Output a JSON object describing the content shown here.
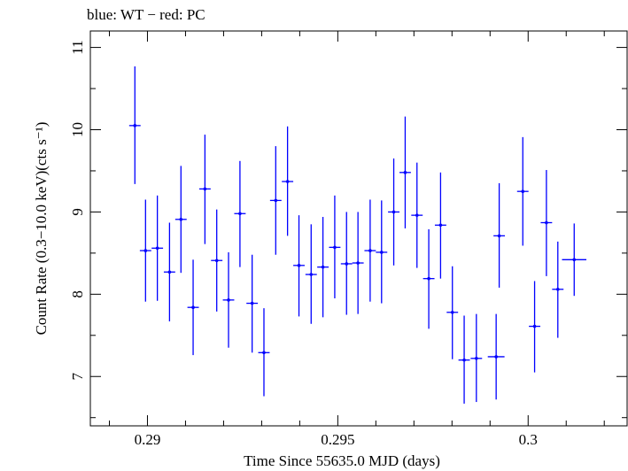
{
  "chart_data": {
    "type": "scatter",
    "title": "blue: WT − red: PC",
    "xlabel": "Time Since 55635.0 MJD (days)",
    "ylabel": "Count Rate (0.3−10.0 keV)(cts s⁻¹)",
    "xlim": [
      0.2885,
      0.3026
    ],
    "ylim": [
      6.4,
      11.2
    ],
    "x_ticks": [
      "0.29",
      "0.295",
      "0.3"
    ],
    "x_tick_values": [
      0.29,
      0.295,
      0.3
    ],
    "y_ticks": [
      "7",
      "8",
      "9",
      "10",
      "11"
    ],
    "y_tick_values": [
      7,
      8,
      9,
      10,
      11
    ],
    "grid": false,
    "error_bars": true,
    "series": [
      {
        "color": "#0000ff",
        "points": [
          {
            "x": 0.28967,
            "xerr": 0.00015,
            "y": 10.05,
            "ylo": 9.34,
            "yhi": 10.77
          },
          {
            "x": 0.28995,
            "xerr": 0.00015,
            "y": 8.53,
            "ylo": 7.91,
            "yhi": 9.15
          },
          {
            "x": 0.29026,
            "xerr": 0.00015,
            "y": 8.56,
            "ylo": 7.92,
            "yhi": 9.2
          },
          {
            "x": 0.29058,
            "xerr": 0.00015,
            "y": 8.27,
            "ylo": 7.67,
            "yhi": 8.87
          },
          {
            "x": 0.29088,
            "xerr": 0.00015,
            "y": 8.91,
            "ylo": 8.26,
            "yhi": 9.56
          },
          {
            "x": 0.2912,
            "xerr": 0.00015,
            "y": 7.84,
            "ylo": 7.26,
            "yhi": 8.42
          },
          {
            "x": 0.29151,
            "xerr": 0.00015,
            "y": 9.28,
            "ylo": 8.61,
            "yhi": 9.94
          },
          {
            "x": 0.29182,
            "xerr": 0.00015,
            "y": 8.41,
            "ylo": 7.79,
            "yhi": 9.03
          },
          {
            "x": 0.29213,
            "xerr": 0.00015,
            "y": 7.93,
            "ylo": 7.35,
            "yhi": 8.51
          },
          {
            "x": 0.29243,
            "xerr": 0.00015,
            "y": 8.98,
            "ylo": 8.33,
            "yhi": 9.62
          },
          {
            "x": 0.29275,
            "xerr": 0.00015,
            "y": 7.89,
            "ylo": 7.29,
            "yhi": 8.48
          },
          {
            "x": 0.29306,
            "xerr": 0.00015,
            "y": 7.29,
            "ylo": 6.76,
            "yhi": 7.83
          },
          {
            "x": 0.29337,
            "xerr": 0.00015,
            "y": 9.14,
            "ylo": 8.48,
            "yhi": 9.8
          },
          {
            "x": 0.29368,
            "xerr": 0.00015,
            "y": 9.37,
            "ylo": 8.71,
            "yhi": 10.04
          },
          {
            "x": 0.29398,
            "xerr": 0.00015,
            "y": 8.35,
            "ylo": 7.73,
            "yhi": 8.96
          },
          {
            "x": 0.2943,
            "xerr": 0.00015,
            "y": 8.24,
            "ylo": 7.64,
            "yhi": 8.85
          },
          {
            "x": 0.29461,
            "xerr": 0.00015,
            "y": 8.33,
            "ylo": 7.72,
            "yhi": 8.94
          },
          {
            "x": 0.29492,
            "xerr": 0.00015,
            "y": 8.57,
            "ylo": 7.95,
            "yhi": 9.2
          },
          {
            "x": 0.29523,
            "xerr": 0.00015,
            "y": 8.37,
            "ylo": 7.75,
            "yhi": 9.0
          },
          {
            "x": 0.29553,
            "xerr": 0.00015,
            "y": 8.38,
            "ylo": 7.76,
            "yhi": 9.0
          },
          {
            "x": 0.29585,
            "xerr": 0.00015,
            "y": 8.53,
            "ylo": 7.91,
            "yhi": 9.15
          },
          {
            "x": 0.29615,
            "xerr": 0.00015,
            "y": 8.51,
            "ylo": 7.89,
            "yhi": 9.14
          },
          {
            "x": 0.29647,
            "xerr": 0.00015,
            "y": 9.0,
            "ylo": 8.35,
            "yhi": 9.65
          },
          {
            "x": 0.29677,
            "xerr": 0.00015,
            "y": 9.48,
            "ylo": 8.8,
            "yhi": 10.16
          },
          {
            "x": 0.29708,
            "xerr": 0.00015,
            "y": 8.96,
            "ylo": 8.32,
            "yhi": 9.6
          },
          {
            "x": 0.29739,
            "xerr": 0.00015,
            "y": 8.19,
            "ylo": 7.58,
            "yhi": 8.79
          },
          {
            "x": 0.2977,
            "xerr": 0.00015,
            "y": 8.84,
            "ylo": 8.19,
            "yhi": 9.48
          },
          {
            "x": 0.29801,
            "xerr": 0.00015,
            "y": 7.78,
            "ylo": 7.21,
            "yhi": 8.34
          },
          {
            "x": 0.29832,
            "xerr": 0.00015,
            "y": 7.2,
            "ylo": 6.67,
            "yhi": 7.74
          },
          {
            "x": 0.29864,
            "xerr": 0.00015,
            "y": 7.22,
            "ylo": 6.69,
            "yhi": 7.76
          },
          {
            "x": 0.29924,
            "xerr": 0.00015,
            "y": 8.71,
            "ylo": 8.08,
            "yhi": 9.35
          },
          {
            "x": 0.29916,
            "xerr": 0.00022,
            "y": 7.24,
            "ylo": 6.72,
            "yhi": 7.76
          },
          {
            "x": 0.29986,
            "xerr": 0.00015,
            "y": 9.25,
            "ylo": 8.59,
            "yhi": 9.91
          },
          {
            "x": 0.30017,
            "xerr": 0.00015,
            "y": 7.61,
            "ylo": 7.05,
            "yhi": 8.16
          },
          {
            "x": 0.30048,
            "xerr": 0.00015,
            "y": 8.87,
            "ylo": 8.22,
            "yhi": 9.51
          },
          {
            "x": 0.30078,
            "xerr": 0.00015,
            "y": 8.06,
            "ylo": 7.47,
            "yhi": 8.64
          },
          {
            "x": 0.30121,
            "xerr": 0.00032,
            "y": 8.42,
            "ylo": 7.98,
            "yhi": 8.86
          }
        ]
      }
    ]
  }
}
